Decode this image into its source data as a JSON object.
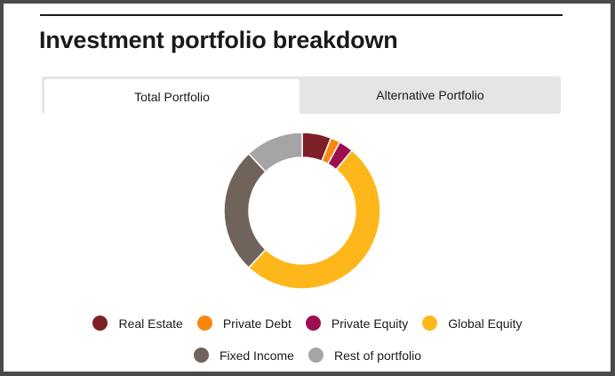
{
  "header": {
    "title": "Investment portfolio breakdown"
  },
  "tabs": [
    {
      "label": "Total Portfolio",
      "active": true
    },
    {
      "label": "Alternative Portfolio",
      "active": false
    }
  ],
  "chart_data": {
    "type": "pie",
    "donut": true,
    "categories": [
      "Real Estate",
      "Private Debt",
      "Private Equity",
      "Global Equity",
      "Fixed Income",
      "Rest of portfolio"
    ],
    "values": [
      6,
      2,
      3,
      51,
      26,
      12
    ],
    "colors": [
      "#7d2027",
      "#f7870f",
      "#9e0f4f",
      "#fdb71a",
      "#6f635b",
      "#a5a5a5"
    ],
    "legend_position": "bottom"
  }
}
